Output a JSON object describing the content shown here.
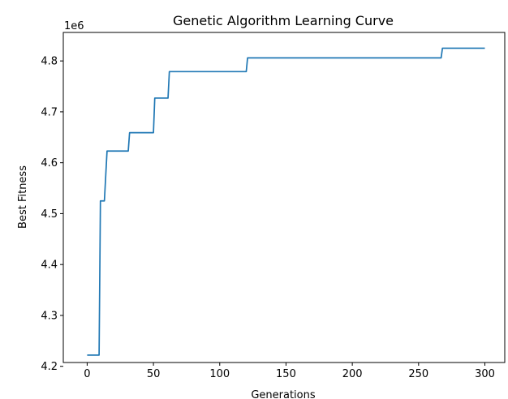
{
  "chart_data": {
    "type": "line",
    "title": "Genetic Algorithm Learning Curve",
    "xlabel": "Generations",
    "ylabel": "Best Fitness",
    "y_offset_label": "1e6",
    "y_scale_factor": 1000000,
    "xlim": [
      -18,
      315
    ],
    "ylim": [
      4.2075,
      4.856
    ],
    "x_ticks": [
      0,
      50,
      100,
      150,
      200,
      250,
      300
    ],
    "y_ticks": [
      4.2,
      4.3,
      4.4,
      4.5,
      4.6,
      4.7,
      4.8
    ],
    "grid": false,
    "line_color": "#1f77b4",
    "series": [
      {
        "x": [
          0,
          9,
          10,
          13,
          15,
          31,
          32,
          50,
          51,
          61,
          62,
          120,
          121,
          267,
          268,
          300
        ],
        "y": [
          4.222,
          4.222,
          4.525,
          4.525,
          4.623,
          4.623,
          4.659,
          4.659,
          4.727,
          4.727,
          4.779,
          4.779,
          4.806,
          4.806,
          4.825,
          4.825
        ]
      }
    ]
  }
}
